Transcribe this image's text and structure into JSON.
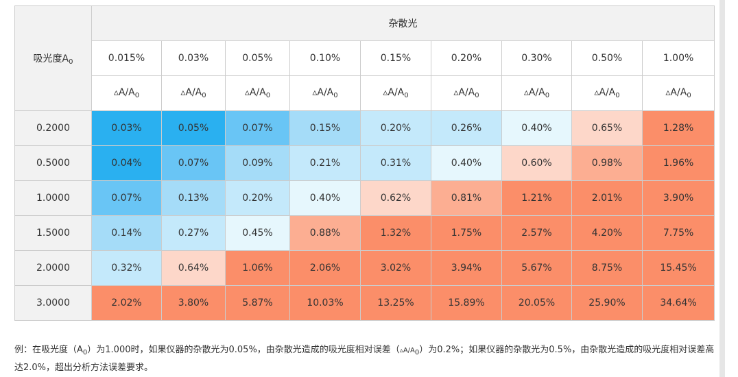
{
  "header": {
    "row_label": "吸光度A",
    "row_label_sub": "0",
    "group_label": "杂散光",
    "stray_light": [
      "0.015%",
      "0.03%",
      "0.05%",
      "0.10%",
      "0.15%",
      "0.20%",
      "0.30%",
      "0.50%",
      "1.00%"
    ],
    "metric_symbol": "▵A/A",
    "metric_sub": "0"
  },
  "rows": [
    {
      "absorbance": "0.2000",
      "values": [
        "0.03%",
        "0.05%",
        "0.07%",
        "0.15%",
        "0.20%",
        "0.26%",
        "0.40%",
        "0.65%",
        "1.28%"
      ],
      "colors": [
        "#2ab0f0",
        "#2ab0f0",
        "#69c5f5",
        "#a5dcf8",
        "#c4e9fb",
        "#c4e9fb",
        "#e6f7fd",
        "#fdd7c9",
        "#fb8e69"
      ]
    },
    {
      "absorbance": "0.5000",
      "values": [
        "0.04%",
        "0.07%",
        "0.09%",
        "0.21%",
        "0.31%",
        "0.40%",
        "0.60%",
        "0.98%",
        "1.96%"
      ],
      "colors": [
        "#2ab0f0",
        "#69c5f5",
        "#a5dcf8",
        "#c4e9fb",
        "#c4e9fb",
        "#e6f7fd",
        "#fdd7c9",
        "#fcae92",
        "#fb8e69"
      ]
    },
    {
      "absorbance": "1.0000",
      "values": [
        "0.07%",
        "0.13%",
        "0.20%",
        "0.40%",
        "0.62%",
        "0.81%",
        "1.21%",
        "2.01%",
        "3.90%"
      ],
      "colors": [
        "#69c5f5",
        "#a5dcf8",
        "#c4e9fb",
        "#e6f7fd",
        "#fdd7c9",
        "#fcae92",
        "#fb8e69",
        "#fb8e69",
        "#fb8e69"
      ]
    },
    {
      "absorbance": "1.5000",
      "values": [
        "0.14%",
        "0.27%",
        "0.45%",
        "0.88%",
        "1.32%",
        "1.75%",
        "2.57%",
        "4.20%",
        "7.75%"
      ],
      "colors": [
        "#a5dcf8",
        "#c4e9fb",
        "#e6f7fd",
        "#fcae92",
        "#fb8e69",
        "#fb8e69",
        "#fb8e69",
        "#fb8e69",
        "#fb8e69"
      ]
    },
    {
      "absorbance": "2.0000",
      "values": [
        "0.32%",
        "0.64%",
        "1.06%",
        "2.06%",
        "3.02%",
        "3.94%",
        "5.67%",
        "8.75%",
        "15.45%"
      ],
      "colors": [
        "#c4e9fb",
        "#fdd7c9",
        "#fb8e69",
        "#fb8e69",
        "#fb8e69",
        "#fb8e69",
        "#fb8e69",
        "#fb8e69",
        "#fb8e69"
      ]
    },
    {
      "absorbance": "3.0000",
      "values": [
        "2.02%",
        "3.80%",
        "5.87%",
        "10.03%",
        "13.25%",
        "15.89%",
        "20.05%",
        "25.90%",
        "34.64%"
      ],
      "colors": [
        "#fb8e69",
        "#fb8e69",
        "#fb8e69",
        "#fb8e69",
        "#fb8e69",
        "#fb8e69",
        "#fb8e69",
        "#fb8e69",
        "#fb8e69"
      ]
    }
  ],
  "note": {
    "part1": "例：在吸光度（A",
    "part1_sub": "0",
    "part2": "）为1.000时，如果仪器的杂散光为0.05%，由杂散光造成的吸光度相对误差（",
    "part2_symbol": "▵A/A",
    "part2_sub": "0",
    "part3": "）为0.2%；如果仪器的杂散光为0.5%，由杂散光造成的吸光度相对误差高达2.0%，超出分析方法误差要求。"
  }
}
